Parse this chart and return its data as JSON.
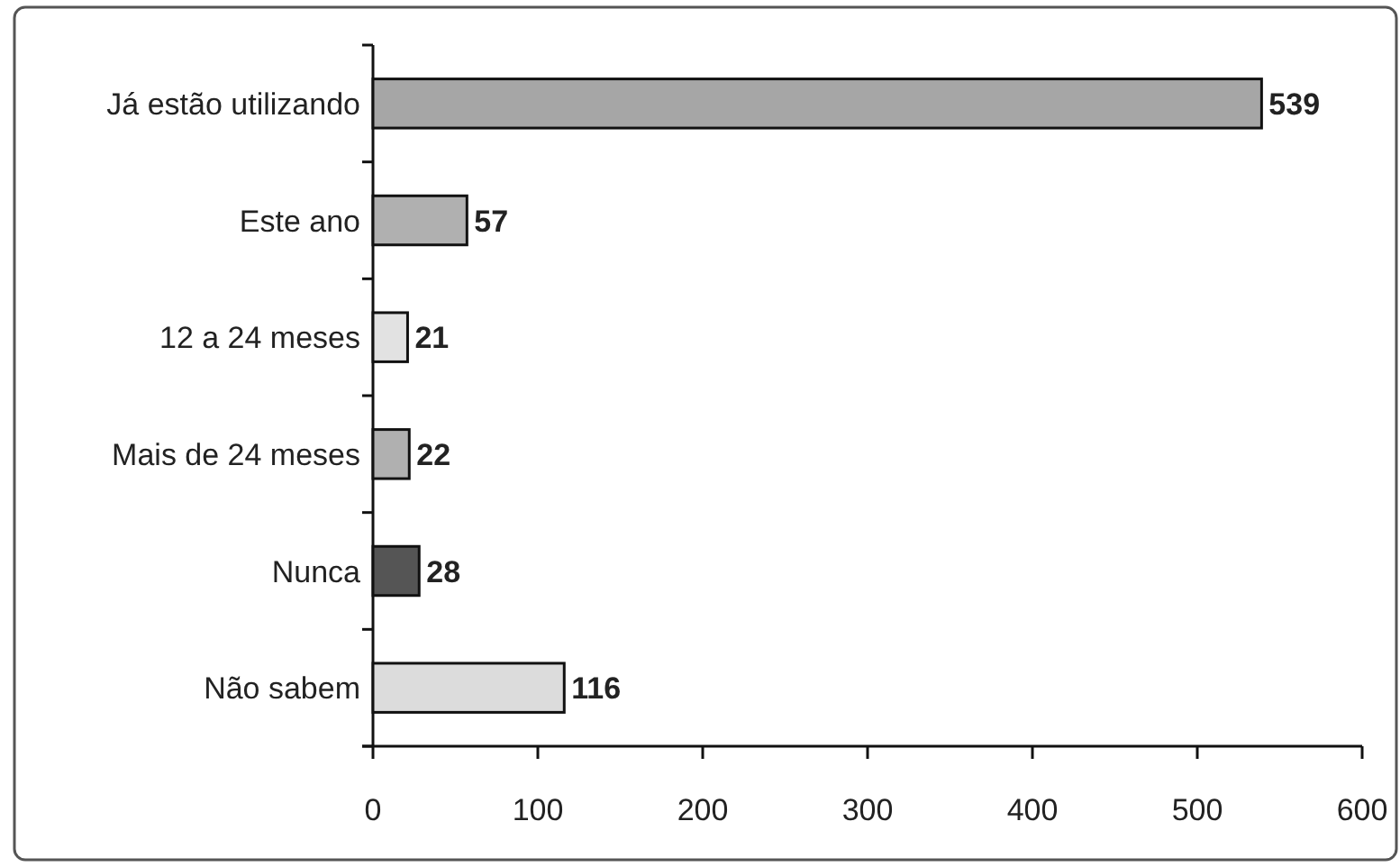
{
  "chart_data": {
    "type": "bar",
    "orientation": "horizontal",
    "categories": [
      "Já estão utilizando",
      "Este ano",
      "12 a 24 meses",
      "Mais de 24 meses",
      "Nunca",
      "Não sabem"
    ],
    "values": [
      539,
      57,
      21,
      22,
      28,
      116
    ],
    "colors": [
      "#a6a6a6",
      "#b0b0b0",
      "#e2e2e2",
      "#b0b0b0",
      "#555555",
      "#dcdcdc"
    ],
    "xlim": [
      0,
      600
    ],
    "xticks": [
      0,
      100,
      200,
      300,
      400,
      500,
      600
    ],
    "data_labels": true
  }
}
